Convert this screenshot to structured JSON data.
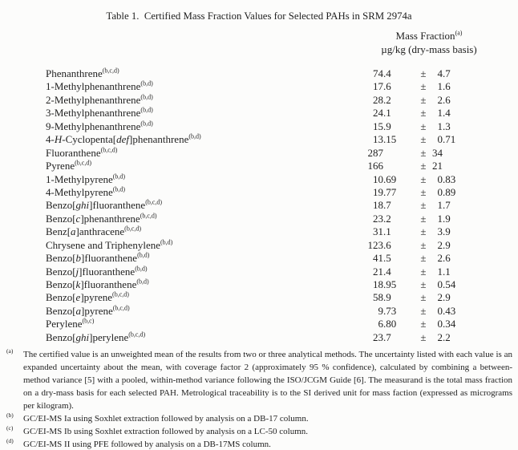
{
  "title": "Table 1.  Certified Mass Fraction Values for Selected PAHs in SRM 2974a",
  "header": {
    "label": "Mass Fraction",
    "label_sup": "(a)",
    "units": "µg/kg (dry-mass basis)"
  },
  "columns": {
    "plus_minus": "±"
  },
  "rows": [
    {
      "name": "Phenanthrene",
      "sup": "(b,c,d)",
      "value": "74.4",
      "uncertainty": "4.7"
    },
    {
      "name": "1-Methylphenanthrene",
      "sup": "(b,d)",
      "value": "17.6",
      "uncertainty": "1.6"
    },
    {
      "name": "2-Methylphenanthrene",
      "sup": "(b,d)",
      "value": "28.2",
      "uncertainty": "2.6"
    },
    {
      "name": "3-Methylphenanthrene",
      "sup": "(b,d)",
      "value": "24.1",
      "uncertainty": "1.4"
    },
    {
      "name": "9-Methylphenanthrene",
      "sup": "(b,d)",
      "value": "15.9",
      "uncertainty": "1.3"
    },
    {
      "name": "4-*H*-Cyclopenta[*def*]phenanthrene",
      "sup": "(b,d)",
      "value": "13.15",
      "uncertainty": "0.71"
    },
    {
      "name": "Fluoranthene",
      "sup": "(b,c,d)",
      "value": "287",
      "uncertainty": "34"
    },
    {
      "name": "Pyrene",
      "sup": "(b,c,d)",
      "value": "166",
      "uncertainty": "21"
    },
    {
      "name": "1-Methylpyrene",
      "sup": "(b,d)",
      "value": "10.69",
      "uncertainty": "0.83"
    },
    {
      "name": "4-Methylpyrene",
      "sup": "(b,d)",
      "value": "19.77",
      "uncertainty": "0.89"
    },
    {
      "name": "Benzo[*ghi*]fluoranthene",
      "sup": "(b,c,d)",
      "value": "18.7",
      "uncertainty": "1.7"
    },
    {
      "name": "Benzo[*c*]phenanthrene",
      "sup": "(b,c,d)",
      "value": "23.2",
      "uncertainty": "1.9"
    },
    {
      "name": "Benz[*a*]anthracene",
      "sup": "(b,c,d)",
      "value": "31.1",
      "uncertainty": "3.9"
    },
    {
      "name": "Chrysene and Triphenylene",
      "sup": "(b,d)",
      "value": "123.6",
      "uncertainty": "2.9"
    },
    {
      "name": "Benzo[*b*]fluoranthene",
      "sup": "(b,d)",
      "value": "41.5",
      "uncertainty": "2.6"
    },
    {
      "name": "Benzo[*j*]fluoranthene",
      "sup": "(b,d)",
      "value": "21.4",
      "uncertainty": "1.1"
    },
    {
      "name": "Benzo[*k*]fluoranthene",
      "sup": "(b,d)",
      "value": "18.95",
      "uncertainty": "0.54"
    },
    {
      "name": "Benzo[*e*]pyrene",
      "sup": "(b,c,d)",
      "value": "58.9",
      "uncertainty": "2.9"
    },
    {
      "name": "Benzo[*a*]pyrene",
      "sup": "(b,c,d)",
      "value": "9.73",
      "uncertainty": "0.43"
    },
    {
      "name": "Perylene",
      "sup": "(b,c)",
      "value": "6.80",
      "uncertainty": "0.34"
    },
    {
      "name": "Benzo[*ghi*]perylene",
      "sup": "(b,c,d)",
      "value": "23.7",
      "uncertainty": "2.2"
    }
  ],
  "footnotes": [
    {
      "marker": "(a)",
      "text": "The certified value is an unweighted mean of the results from two or three analytical methods.  The uncertainty listed with each value is an expanded uncertainty about the mean, with coverage factor 2 (approximately 95 % confidence), calculated by combining a between-method variance [5] with a pooled, within-method variance following the ISO/JCGM Guide [6].  The measurand is the total mass fraction on a dry-mass basis for each selected PAH.  Metrological traceability is to the SI derived unit for mass faction (expressed as micrograms per kilogram)."
    },
    {
      "marker": "(b)",
      "text": "GC/EI-MS Ia using Soxhlet extraction followed by analysis on a DB-17 column."
    },
    {
      "marker": "(c)",
      "text": "GC/EI-MS Ib using Soxhlet extraction followed by analysis on a LC-50 column."
    },
    {
      "marker": "(d)",
      "text": "GC/EI-MS II using PFE followed by analysis on a DB-17MS column."
    }
  ]
}
